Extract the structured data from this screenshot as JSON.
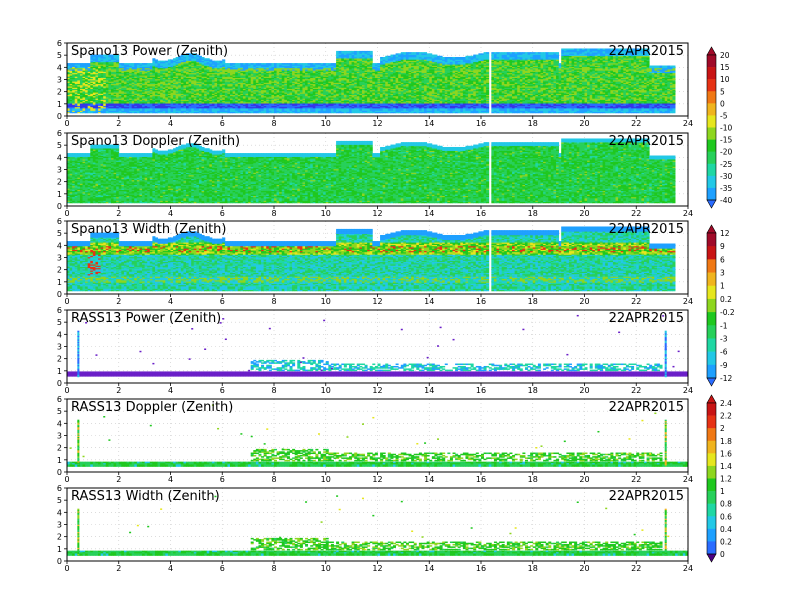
{
  "date": "22APR2015",
  "panels": [
    {
      "title": "Spano13 Power (Zenith)",
      "colorbar": 0
    },
    {
      "title": "Spano13 Doppler (Zenith)",
      "colorbar": 0
    },
    {
      "title": "Spano13 Width (Zenith)",
      "colorbar": 1
    },
    {
      "title": "RASS13 Power (Zenith)",
      "colorbar": 1
    },
    {
      "title": "RASS13 Doppler (Zenith)",
      "colorbar": 2
    },
    {
      "title": "RASS13 Width (Zenith)",
      "colorbar": 2
    }
  ],
  "colorbars": [
    {
      "labels": [
        "20",
        "15",
        "10",
        "5",
        "0",
        "-5",
        "-10",
        "-15",
        "-20",
        "-25",
        "-30",
        "-35",
        "-40"
      ]
    },
    {
      "labels": [
        "12",
        "9",
        "6",
        "3",
        "1",
        "0.2",
        "-0.2",
        "-1",
        "-3",
        "-6",
        "-9",
        "-12"
      ]
    },
    {
      "labels": [
        "2.4",
        "2.2",
        "2",
        "1.8",
        "1.6",
        "1.4",
        "1.2",
        "1",
        "0.8",
        "0.6",
        "0.4",
        "0.2",
        "0"
      ]
    }
  ],
  "colors": {
    "palette": [
      "#4b0082",
      "#6a1fc8",
      "#3535e8",
      "#2a6cff",
      "#1ea0ff",
      "#22c8e6",
      "#1fd7a3",
      "#27d05a",
      "#1fc81f",
      "#8ed61f",
      "#e6e61e",
      "#f0b41e",
      "#f07814",
      "#e63214",
      "#c81414",
      "#a00a28"
    ]
  },
  "chart_data": {
    "type": "heatmap",
    "x_ticks": [
      "0",
      "2",
      "4",
      "6",
      "8",
      "10",
      "12",
      "14",
      "16",
      "18",
      "20",
      "22",
      "24"
    ],
    "y_ticks": [
      "0",
      "1",
      "2",
      "3",
      "4",
      "5",
      "6"
    ],
    "xlim": [
      0,
      24
    ],
    "ylim": [
      0,
      6
    ],
    "xlabel": "",
    "ylabel": "",
    "grid": true,
    "panels": [
      {
        "name": "Spano13 Power (Zenith)",
        "top_height_profile": "approx 4.2-5.5",
        "dominant_values": "-20 to -30",
        "data_gap_hour": 16.3
      },
      {
        "name": "Spano13 Doppler (Zenith)",
        "top_height_profile": "approx 4.2-5.5",
        "dominant_values": "-5 to -15",
        "data_gap_hour": 16.3
      },
      {
        "name": "Spano13 Width (Zenith)",
        "top_height_profile": "approx 4.2-5.5",
        "dominant_values": "0.2 to 1",
        "high_band_height": 3.5,
        "data_gap_hour": 16.3
      },
      {
        "name": "RASS13 Power (Zenith)",
        "main_band_height": 0.7,
        "dense_period_hours": [
          7,
          23
        ],
        "spike_hours": [
          0.4,
          23.1
        ]
      },
      {
        "name": "RASS13 Doppler (Zenith)",
        "main_band_height": 0.6,
        "dense_period_hours": [
          7,
          23
        ],
        "spike_hours": [
          0.4,
          23.1
        ]
      },
      {
        "name": "RASS13 Width (Zenith)",
        "main_band_height": 0.6,
        "dense_period_hours": [
          7,
          23
        ],
        "spike_hours": [
          0.4,
          23.1
        ]
      }
    ]
  }
}
